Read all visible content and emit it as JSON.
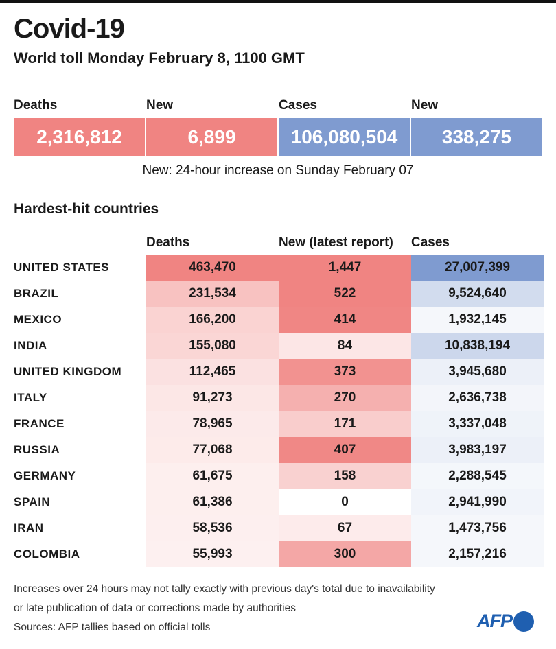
{
  "header": {
    "title": "Covid-19",
    "subtitle": "World toll Monday February 8,  1100 GMT"
  },
  "summary": {
    "labels": [
      "Deaths",
      "New",
      "Cases",
      "New"
    ],
    "values": [
      "2,316,812",
      "6,899",
      "106,080,504",
      "338,275"
    ],
    "note": "New: 24-hour increase on Sunday February 07"
  },
  "colors": {
    "deaths": "#f08482",
    "cases": "#7f9bd0"
  },
  "chart_data": {
    "type": "table",
    "title": "Hardest-hit countries",
    "columns": [
      "Deaths",
      "New (latest report)",
      "Cases"
    ],
    "rows": [
      {
        "country": "UNITED STATES",
        "deaths": "463,470",
        "new": "1,447",
        "cases": "27,007,399"
      },
      {
        "country": "BRAZIL",
        "deaths": "231,534",
        "new": "522",
        "cases": "9,524,640"
      },
      {
        "country": "MEXICO",
        "deaths": "166,200",
        "new": "414",
        "cases": "1,932,145"
      },
      {
        "country": "INDIA",
        "deaths": "155,080",
        "new": "84",
        "cases": "10,838,194"
      },
      {
        "country": "UNITED KINGDOM",
        "deaths": "112,465",
        "new": "373",
        "cases": "3,945,680"
      },
      {
        "country": "ITALY",
        "deaths": "91,273",
        "new": "270",
        "cases": "2,636,738"
      },
      {
        "country": "FRANCE",
        "deaths": "78,965",
        "new": "171",
        "cases": "3,337,048"
      },
      {
        "country": "RUSSIA",
        "deaths": "77,068",
        "new": "407",
        "cases": "3,983,197"
      },
      {
        "country": "GERMANY",
        "deaths": "61,675",
        "new": "158",
        "cases": "2,288,545"
      },
      {
        "country": "SPAIN",
        "deaths": "61,386",
        "new": "0",
        "cases": "2,941,990"
      },
      {
        "country": "IRAN",
        "deaths": "58,536",
        "new": "67",
        "cases": "1,473,756"
      },
      {
        "country": "COLOMBIA",
        "deaths": "55,993",
        "new": "300",
        "cases": "2,157,216"
      }
    ]
  },
  "footer": {
    "lines": [
      "Increases over 24 hours may not tally exactly with previous day's total due to inavailability",
      "or late publication of data or corrections made by authorities",
      "Sources: AFP tallies based on official tolls"
    ],
    "logo": "AFP"
  }
}
